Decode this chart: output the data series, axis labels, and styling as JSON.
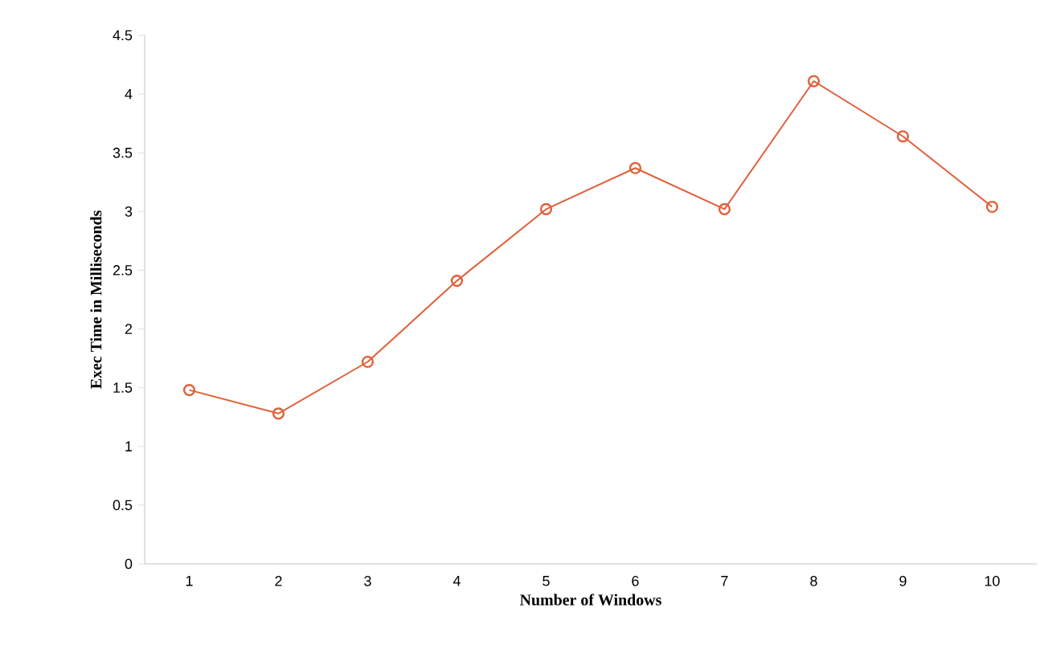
{
  "chart_data": {
    "type": "line",
    "xlabel": "Number of Windows",
    "ylabel": "Exec Time in Milliseconds",
    "categories": [
      "1",
      "2",
      "3",
      "4",
      "5",
      "6",
      "7",
      "8",
      "9",
      "10"
    ],
    "series": [
      {
        "color": "#e0603a",
        "values": [
          1.48,
          1.28,
          1.72,
          2.41,
          3.02,
          3.37,
          3.02,
          4.11,
          3.64,
          3.04
        ]
      }
    ],
    "ylim": [
      0,
      4.5
    ],
    "yticks": [
      0,
      0.5,
      1,
      1.5,
      2,
      2.5,
      3,
      3.5,
      4,
      4.5
    ],
    "marker": "circle",
    "line_style": "solid",
    "grid": false
  }
}
